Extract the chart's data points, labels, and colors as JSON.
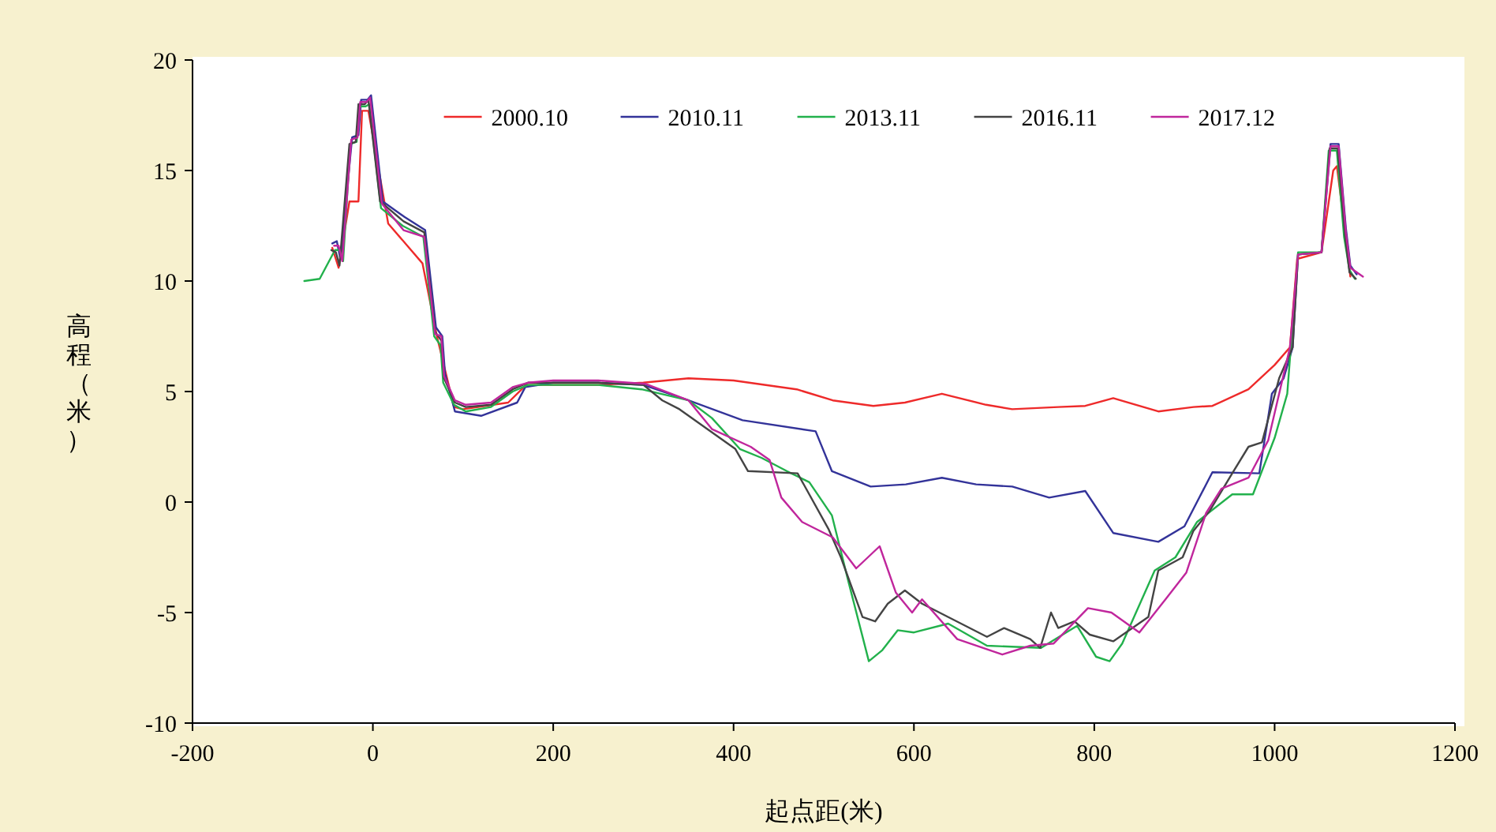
{
  "chart_data": {
    "type": "line",
    "xlabel": "起点距(米)",
    "ylabel": "高程（米）",
    "xlim": [
      -200,
      1200
    ],
    "ylim": [
      -10,
      20
    ],
    "xticks": [
      -200,
      0,
      200,
      400,
      600,
      800,
      1000,
      1200
    ],
    "yticks": [
      -10,
      -5,
      0,
      5,
      10,
      15,
      20
    ],
    "grid": false,
    "legend": "top",
    "marker": "none",
    "line_style": "solid",
    "series": [
      {
        "name": "2000.10",
        "color": "#ee2a2a",
        "x": [
          -45,
          -38,
          -26,
          -16,
          -12,
          -5,
          17,
          55,
          71,
          90,
          100,
          150,
          170,
          200,
          250,
          300,
          350,
          400,
          470,
          510,
          555,
          590,
          631,
          680,
          709,
          760,
          790,
          821,
          871,
          910,
          931,
          971,
          1000,
          1017,
          1025,
          1052,
          1065,
          1069,
          1079,
          1084
        ],
        "values": [
          11.5,
          10.6,
          13.6,
          13.6,
          17.7,
          17.7,
          12.6,
          10.8,
          7.5,
          4.3,
          4.2,
          4.5,
          5.3,
          5.3,
          5.3,
          5.4,
          5.6,
          5.5,
          5.1,
          4.6,
          4.35,
          4.5,
          4.9,
          4.4,
          4.2,
          4.3,
          4.35,
          4.7,
          4.1,
          4.3,
          4.35,
          5.1,
          6.2,
          7.0,
          11.0,
          11.3,
          15.0,
          15.2,
          12.0,
          10.2
        ]
      },
      {
        "name": "2010.11",
        "color": "#333399",
        "x": [
          -45,
          -40,
          -36,
          -23,
          -16,
          -13,
          -6,
          -2,
          11,
          35,
          58,
          70,
          77,
          80,
          91,
          120,
          160,
          169,
          200,
          250,
          300,
          350,
          410,
          491,
          509,
          552,
          591,
          631,
          669,
          709,
          750,
          790,
          821,
          871,
          900,
          931,
          983,
          997,
          1010,
          1020,
          1026,
          1052,
          1062,
          1071,
          1079,
          1084,
          1091
        ],
        "values": [
          11.7,
          11.8,
          11.0,
          16.5,
          16.6,
          18.2,
          18.2,
          18.4,
          13.6,
          12.9,
          12.3,
          7.9,
          7.5,
          5.8,
          4.1,
          3.9,
          4.5,
          5.2,
          5.4,
          5.4,
          5.3,
          4.6,
          3.7,
          3.2,
          1.4,
          0.7,
          0.8,
          1.1,
          0.8,
          0.7,
          0.2,
          0.5,
          -1.4,
          -1.8,
          -1.1,
          1.35,
          1.3,
          4.9,
          5.6,
          7.0,
          11.2,
          11.3,
          16.2,
          16.2,
          12.4,
          10.7,
          10.3
        ]
      },
      {
        "name": "2013.11",
        "color": "#22b14c",
        "x": [
          -76,
          -59,
          -42,
          -37,
          -33,
          -25,
          -18,
          -15,
          -8,
          -4,
          9,
          33,
          56,
          68,
          75,
          78,
          90,
          103,
          131,
          155,
          172,
          200,
          250,
          298,
          350,
          376,
          407,
          431,
          459,
          484,
          509,
          528,
          550,
          565,
          582,
          600,
          638,
          681,
          741,
          781,
          802,
          817,
          831,
          867,
          890,
          914,
          953,
          976,
          1000,
          1014,
          1026,
          1052,
          1060,
          1069,
          1077,
          1083,
          1089
        ],
        "values": [
          10.0,
          10.1,
          11.4,
          11.4,
          10.9,
          16.2,
          16.3,
          17.9,
          17.9,
          18.0,
          13.3,
          12.5,
          12.0,
          7.5,
          7.1,
          5.4,
          4.4,
          4.1,
          4.3,
          5.0,
          5.3,
          5.3,
          5.3,
          5.1,
          4.6,
          3.8,
          2.4,
          2.0,
          1.4,
          0.9,
          -0.6,
          -3.7,
          -7.2,
          -6.7,
          -5.8,
          -5.9,
          -5.5,
          -6.5,
          -6.6,
          -5.6,
          -7.0,
          -7.2,
          -6.4,
          -3.1,
          -2.5,
          -0.9,
          0.35,
          0.35,
          2.9,
          4.9,
          11.3,
          11.3,
          15.9,
          15.9,
          12.0,
          10.5,
          10.1
        ]
      },
      {
        "name": "2016.11",
        "color": "#444444",
        "x": [
          -46,
          -41,
          -37,
          -26,
          -19,
          -16,
          -9,
          -5,
          8,
          34,
          57,
          69,
          76,
          79,
          91,
          103,
          131,
          155,
          172,
          200,
          250,
          300,
          321,
          340,
          402,
          416,
          471,
          505,
          519,
          543,
          557,
          571,
          590,
          609,
          681,
          700,
          729,
          740,
          752,
          760,
          778,
          795,
          821,
          860,
          871,
          898,
          910,
          928,
          953,
          971,
          986,
          1005,
          1020,
          1026,
          1052,
          1061,
          1070,
          1078,
          1083,
          1090
        ],
        "values": [
          11.4,
          11.3,
          10.7,
          16.2,
          16.3,
          18.0,
          18.0,
          18.2,
          13.6,
          12.7,
          12.2,
          7.7,
          7.3,
          5.6,
          4.5,
          4.3,
          4.4,
          5.1,
          5.4,
          5.4,
          5.4,
          5.3,
          4.6,
          4.2,
          2.4,
          1.4,
          1.3,
          -1.2,
          -2.5,
          -5.2,
          -5.4,
          -4.6,
          -4.0,
          -4.6,
          -6.1,
          -5.7,
          -6.2,
          -6.6,
          -5.0,
          -5.7,
          -5.4,
          -6.0,
          -6.3,
          -5.2,
          -3.1,
          -2.5,
          -1.3,
          -0.4,
          1.3,
          2.5,
          2.7,
          5.6,
          7.0,
          11.2,
          11.3,
          16.0,
          16.0,
          12.1,
          10.4,
          10.1
        ]
      },
      {
        "name": "2017.12",
        "color": "#c0269c",
        "x": [
          -43,
          -38,
          -34,
          -24,
          -17,
          -14,
          -7,
          -3,
          10,
          34,
          57,
          69,
          76,
          79,
          91,
          103,
          131,
          155,
          172,
          200,
          250,
          302,
          350,
          376,
          419,
          440,
          453,
          476,
          510,
          536,
          562,
          580,
          598,
          609,
          648,
          698,
          729,
          755,
          793,
          819,
          850,
          879,
          902,
          924,
          941,
          971,
          993,
          1017,
          1026,
          1052,
          1062,
          1071,
          1079,
          1084,
          1098
        ],
        "values": [
          11.6,
          11.6,
          10.9,
          16.4,
          16.5,
          18.1,
          18.1,
          18.3,
          13.5,
          12.3,
          12.0,
          7.6,
          7.5,
          5.7,
          4.6,
          4.4,
          4.5,
          5.2,
          5.4,
          5.5,
          5.5,
          5.35,
          4.6,
          3.3,
          2.5,
          1.9,
          0.2,
          -0.9,
          -1.6,
          -3.0,
          -2.0,
          -4.1,
          -5.0,
          -4.4,
          -6.2,
          -6.9,
          -6.5,
          -6.4,
          -4.8,
          -5.0,
          -5.9,
          -4.4,
          -3.2,
          -0.5,
          0.6,
          1.1,
          2.8,
          7.0,
          11.2,
          11.3,
          16.1,
          16.1,
          12.2,
          10.6,
          10.2
        ]
      }
    ]
  }
}
